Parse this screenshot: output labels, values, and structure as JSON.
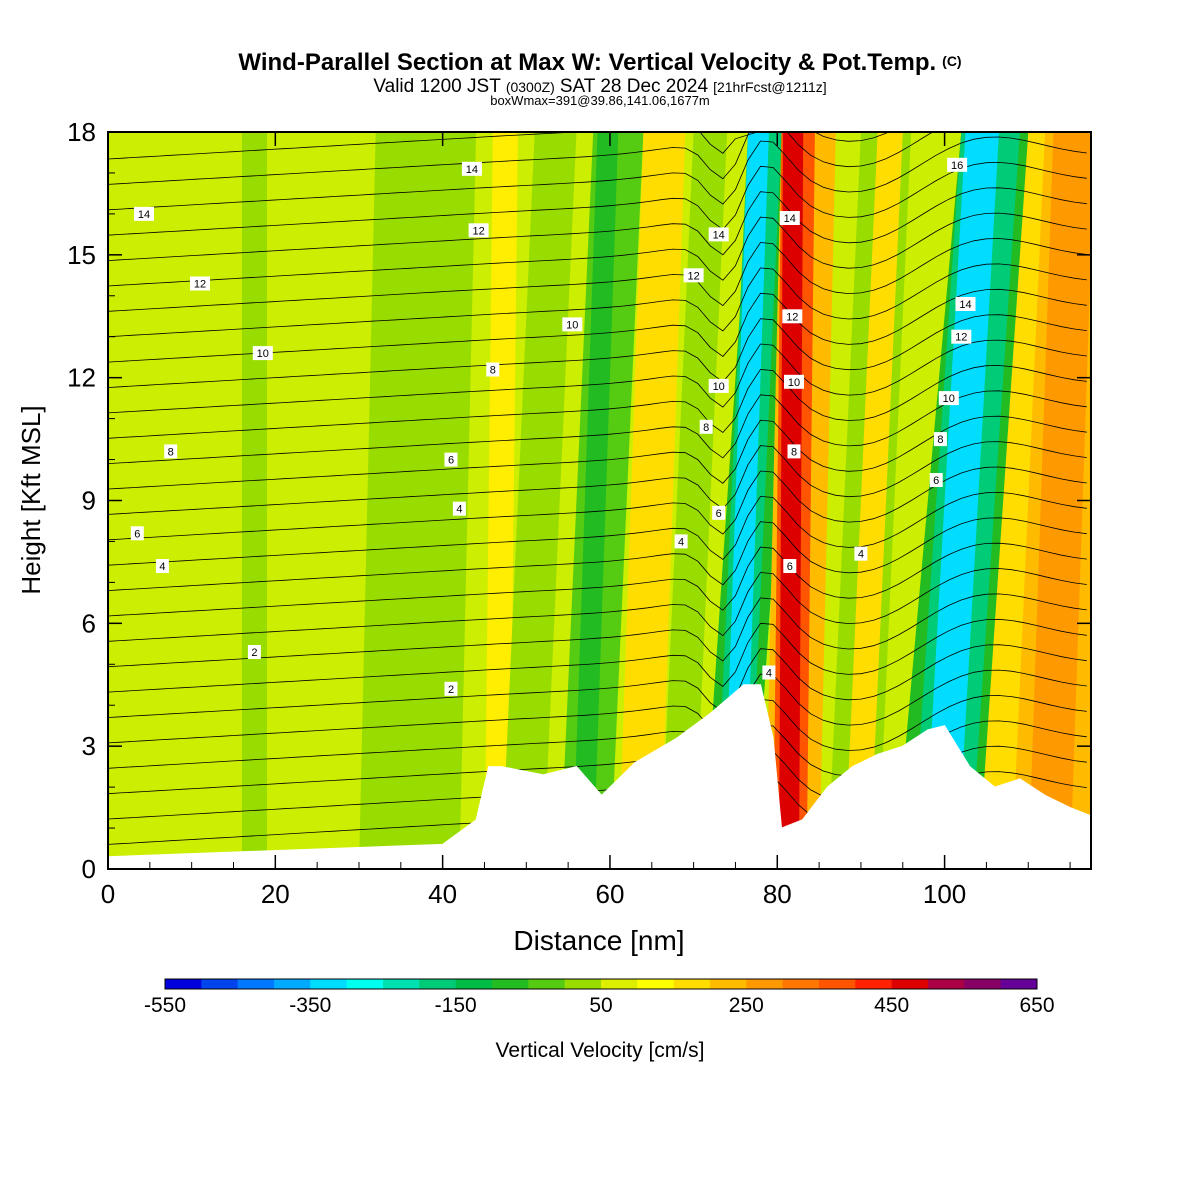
{
  "header": {
    "title_main": "Wind-Parallel Section at Max W: Vertical Velocity & Pot.Temp.",
    "title_copy": "(C)",
    "valid_a": "Valid 1200 JST",
    "valid_b": "(0300Z)",
    "valid_c": "SAT 28 Dec 2024",
    "valid_d": "[21hrFcst@1211z]",
    "box_info": "boxWmax=391@39.86,141.06,1677m"
  },
  "chart_data": {
    "type": "heatmap",
    "xlabel": "Distance [nm]",
    "ylabel": "Height [Kft MSL]",
    "xlim": [
      0,
      117.5
    ],
    "ylim": [
      0,
      18
    ],
    "x_ticks": [
      "0",
      "20",
      "40",
      "60",
      "80",
      "100"
    ],
    "x_tick_values": [
      0,
      20,
      40,
      60,
      80,
      100
    ],
    "y_ticks": [
      "0",
      "3",
      "6",
      "9",
      "12",
      "15",
      "18"
    ],
    "y_tick_values": [
      0,
      3,
      6,
      9,
      12,
      15,
      18
    ],
    "colorbar": {
      "label": "Vertical Velocity [cm/s]",
      "min": -550,
      "max": 650,
      "tick_labels": [
        "-550",
        "-350",
        "-150",
        "50",
        "250",
        "450",
        "650"
      ],
      "tick_values": [
        -550,
        -350,
        -150,
        50,
        250,
        450,
        650
      ],
      "colors": [
        "#0000dd",
        "#0044ee",
        "#0077ff",
        "#00aaff",
        "#00ddff",
        "#00ffee",
        "#00e0b0",
        "#00cc77",
        "#00bb44",
        "#22bb22",
        "#55cc11",
        "#99dd00",
        "#ddee00",
        "#ffff00",
        "#ffdd00",
        "#ffbb00",
        "#ff9900",
        "#ff7700",
        "#ff5500",
        "#ff2200",
        "#dd0000",
        "#aa0044",
        "#880066",
        "#660099"
      ]
    },
    "w_features": [
      {
        "x": 82.0,
        "w": 391,
        "kind": "updraft"
      },
      {
        "x": 76.0,
        "w": -300,
        "kind": "downdraft"
      },
      {
        "x": 100.5,
        "w": -330,
        "kind": "downdraft"
      },
      {
        "x": 57.0,
        "w": -120,
        "kind": "downdraft"
      },
      {
        "x": 113.0,
        "w": 250,
        "kind": "updraft"
      }
    ],
    "terrain": {
      "x": [
        0,
        40,
        44,
        45.5,
        47,
        52,
        56,
        59,
        63,
        68,
        72,
        76,
        78,
        79.5,
        80.5,
        83,
        86,
        89,
        92,
        95,
        98,
        100,
        103,
        106,
        109,
        112,
        115,
        117.5
      ],
      "height": [
        0.3,
        0.6,
        1.2,
        2.5,
        2.5,
        2.3,
        2.5,
        1.8,
        2.6,
        3.2,
        3.8,
        4.5,
        4.5,
        3.2,
        1.0,
        1.2,
        2.0,
        2.5,
        2.8,
        3.0,
        3.4,
        3.5,
        2.5,
        2.0,
        2.2,
        1.8,
        1.5,
        1.3
      ]
    },
    "contour_labels": [
      {
        "text": "14",
        "x": 4.3,
        "y": 16.0
      },
      {
        "text": "14",
        "x": 43.5,
        "y": 17.1
      },
      {
        "text": "12",
        "x": 11.0,
        "y": 14.3
      },
      {
        "text": "12",
        "x": 44.3,
        "y": 15.6
      },
      {
        "text": "10",
        "x": 18.5,
        "y": 12.6
      },
      {
        "text": "10",
        "x": 55.5,
        "y": 13.3
      },
      {
        "text": "8",
        "x": 7.5,
        "y": 10.2
      },
      {
        "text": "8",
        "x": 46.0,
        "y": 12.2
      },
      {
        "text": "6",
        "x": 3.5,
        "y": 8.2
      },
      {
        "text": "6",
        "x": 41.0,
        "y": 10.0
      },
      {
        "text": "4",
        "x": 6.5,
        "y": 7.4
      },
      {
        "text": "4",
        "x": 42.0,
        "y": 8.8
      },
      {
        "text": "2",
        "x": 17.5,
        "y": 5.3
      },
      {
        "text": "2",
        "x": 41.0,
        "y": 4.4
      },
      {
        "text": "4",
        "x": 68.5,
        "y": 8.0
      },
      {
        "text": "14",
        "x": 73.0,
        "y": 15.5
      },
      {
        "text": "12",
        "x": 70.0,
        "y": 14.5
      },
      {
        "text": "10",
        "x": 73.0,
        "y": 11.8
      },
      {
        "text": "8",
        "x": 71.5,
        "y": 10.8
      },
      {
        "text": "6",
        "x": 73.0,
        "y": 8.7
      },
      {
        "text": "4",
        "x": 79.0,
        "y": 4.8
      },
      {
        "text": "14",
        "x": 81.5,
        "y": 15.9
      },
      {
        "text": "12",
        "x": 81.8,
        "y": 13.5
      },
      {
        "text": "10",
        "x": 82.0,
        "y": 11.9
      },
      {
        "text": "8",
        "x": 82.0,
        "y": 10.2
      },
      {
        "text": "6",
        "x": 81.5,
        "y": 7.4
      },
      {
        "text": "4",
        "x": 90.0,
        "y": 7.7
      },
      {
        "text": "16",
        "x": 101.5,
        "y": 17.2
      },
      {
        "text": "14",
        "x": 102.5,
        "y": 13.8
      },
      {
        "text": "12",
        "x": 102.0,
        "y": 13.0
      },
      {
        "text": "10",
        "x": 100.5,
        "y": 11.5
      },
      {
        "text": "8",
        "x": 99.5,
        "y": 10.5
      },
      {
        "text": "6",
        "x": 99.0,
        "y": 9.5
      }
    ]
  }
}
